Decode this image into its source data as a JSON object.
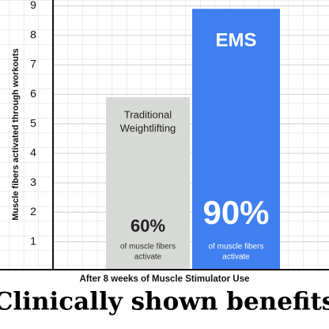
{
  "chart_data": {
    "type": "bar",
    "ylabel": "Muscle fibers activated through workouts",
    "categories": [
      [
        "Traditional",
        "Weightlifting"
      ],
      [
        "EMS"
      ]
    ],
    "values": [
      5.9,
      8.9
    ],
    "colors": [
      "#d6d9d5",
      "#3f7ff0"
    ],
    "highlights": [
      "60%",
      "90%"
    ],
    "notes": [
      [
        "of muscle fibers",
        "activate"
      ],
      [
        "of muscle fibers",
        "activate"
      ]
    ],
    "ylim": [
      0,
      9.2
    ],
    "yticks": [
      1,
      2,
      3,
      4,
      5,
      6,
      7,
      8,
      9
    ],
    "grid": true,
    "subtitle": "After 8 weeks of Muscle Stimulator Use",
    "title": "Clinically shown benefits"
  }
}
